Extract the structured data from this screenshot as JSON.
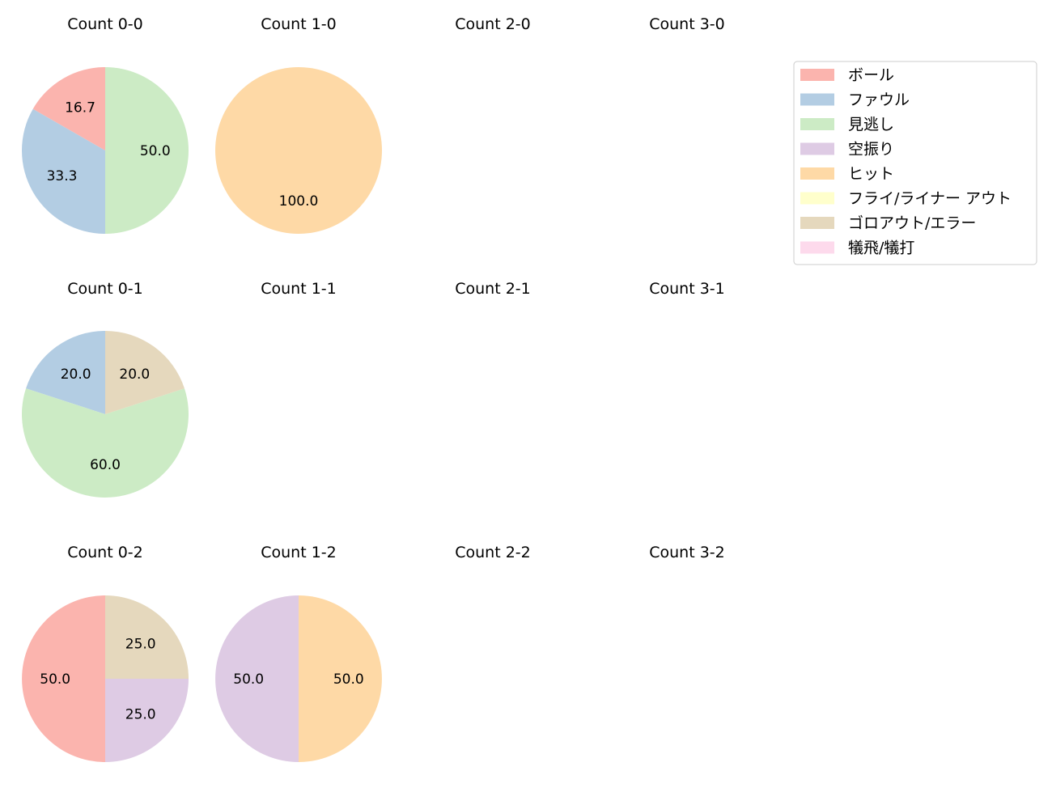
{
  "colors": {
    "ボール": "#fbb4ae",
    "ファウル": "#b3cde3",
    "見逃し": "#ccebc5",
    "空振り": "#decbe4",
    "ヒット": "#fed9a6",
    "フライ/ライナー アウト": "#ffffcc",
    "ゴロアウト/エラー": "#e5d8bd",
    "犠飛/犠打": "#fddaec"
  },
  "legend": {
    "entries": [
      "ボール",
      "ファウル",
      "見逃し",
      "空振り",
      "ヒット",
      "フライ/ライナー アウト",
      "ゴロアウト/エラー",
      "犠飛/犠打"
    ],
    "placement": "upper-right"
  },
  "chart_data": [
    {
      "type": "pie",
      "title": "Count 0-0",
      "slices": [
        {
          "label": "ボール",
          "value": 16.7
        },
        {
          "label": "ファウル",
          "value": 33.3
        },
        {
          "label": "見逃し",
          "value": 50.0
        }
      ]
    },
    {
      "type": "pie",
      "title": "Count 1-0",
      "slices": [
        {
          "label": "ヒット",
          "value": 100.0
        }
      ]
    },
    {
      "type": "pie",
      "title": "Count 2-0",
      "slices": []
    },
    {
      "type": "pie",
      "title": "Count 3-0",
      "slices": []
    },
    {
      "type": "pie",
      "title": "Count 0-1",
      "slices": [
        {
          "label": "ファウル",
          "value": 20.0
        },
        {
          "label": "見逃し",
          "value": 60.0
        },
        {
          "label": "ゴロアウト/エラー",
          "value": 20.0
        }
      ]
    },
    {
      "type": "pie",
      "title": "Count 1-1",
      "slices": []
    },
    {
      "type": "pie",
      "title": "Count 2-1",
      "slices": []
    },
    {
      "type": "pie",
      "title": "Count 3-1",
      "slices": []
    },
    {
      "type": "pie",
      "title": "Count 0-2",
      "slices": [
        {
          "label": "ボール",
          "value": 50.0
        },
        {
          "label": "空振り",
          "value": 25.0
        },
        {
          "label": "ゴロアウト/エラー",
          "value": 25.0
        }
      ]
    },
    {
      "type": "pie",
      "title": "Count 1-2",
      "slices": [
        {
          "label": "空振り",
          "value": 50.0
        },
        {
          "label": "ヒット",
          "value": 50.0
        }
      ]
    },
    {
      "type": "pie",
      "title": "Count 2-2",
      "slices": []
    },
    {
      "type": "pie",
      "title": "Count 3-2",
      "slices": []
    }
  ]
}
